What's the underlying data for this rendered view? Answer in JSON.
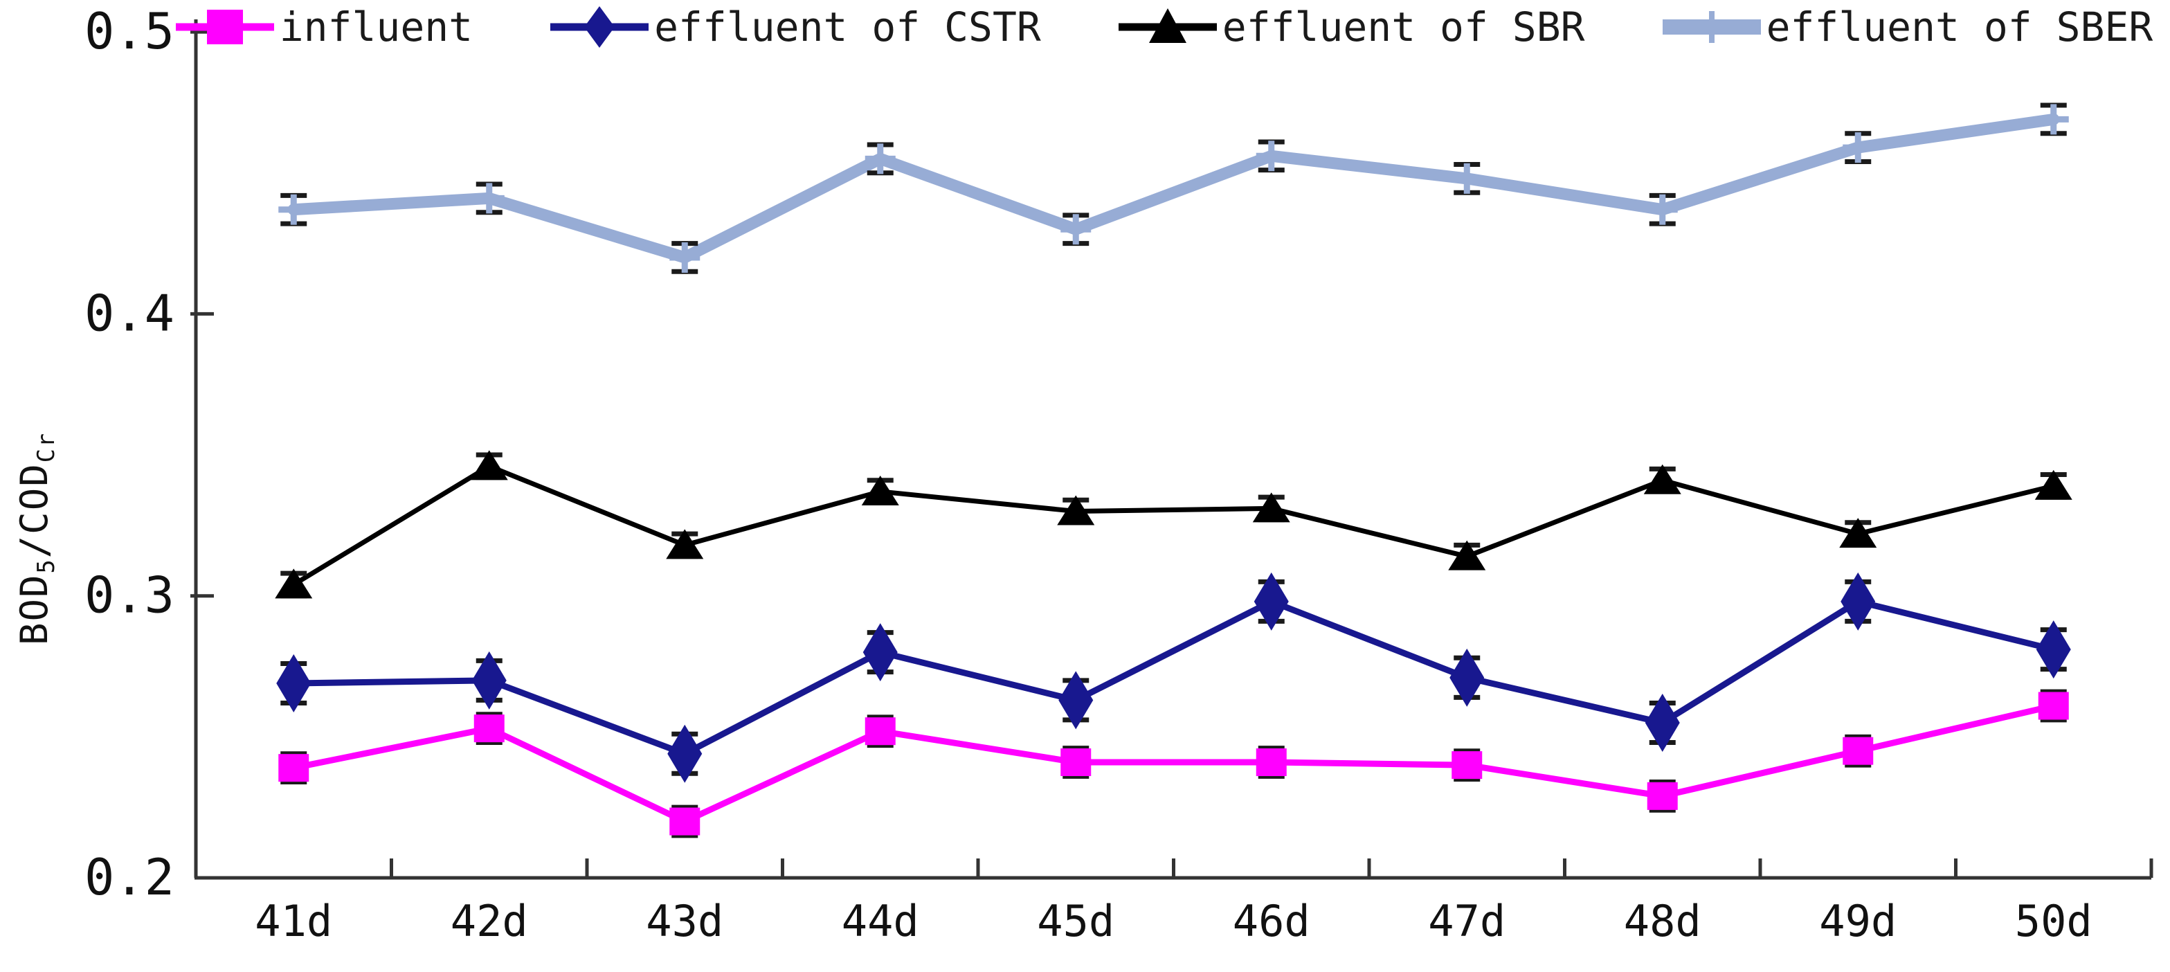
{
  "page": {
    "background": "#ffffff",
    "axis_color": "#333333",
    "error_bar_color": "#1a1a1a"
  },
  "y_axis": {
    "title_plain": "BOD5/CODCr",
    "title_parts": [
      {
        "t": "BOD",
        "sub": false
      },
      {
        "t": "5",
        "sub": true
      },
      {
        "t": "/COD",
        "sub": false
      },
      {
        "t": "Cr",
        "sub": true
      }
    ]
  },
  "chart_data": {
    "type": "line",
    "title": "",
    "xlabel": "",
    "ylabel": "BOD5/CODCr",
    "ylim": [
      0.2,
      0.5
    ],
    "yticks": [
      0.2,
      0.3,
      0.4,
      0.5
    ],
    "ytick_labels": [
      "0.2",
      "0.3",
      "0.4",
      "0.5"
    ],
    "grid": false,
    "legend_position": "top",
    "categories": [
      "41d",
      "42d",
      "43d",
      "44d",
      "45d",
      "46d",
      "47d",
      "48d",
      "49d",
      "50d"
    ],
    "series": [
      {
        "name": "influent",
        "color": "#ff00ff",
        "marker": "square",
        "line_width": 9,
        "error": 0.005,
        "values": [
          0.239,
          0.253,
          0.22,
          0.252,
          0.241,
          0.241,
          0.24,
          0.229,
          0.245,
          0.261
        ]
      },
      {
        "name": "effluent of CSTR",
        "color": "#18188f",
        "marker": "diamond",
        "line_width": 9,
        "error": 0.007,
        "values": [
          0.269,
          0.27,
          0.244,
          0.28,
          0.263,
          0.298,
          0.271,
          0.255,
          0.298,
          0.281
        ]
      },
      {
        "name": "effluent of SBR",
        "color": "#000000",
        "marker": "triangle",
        "line_width": 7,
        "error": 0.004,
        "values": [
          0.304,
          0.346,
          0.318,
          0.337,
          0.33,
          0.331,
          0.314,
          0.341,
          0.322,
          0.339
        ]
      },
      {
        "name": "effluent of SBER",
        "color": "#97acd5",
        "marker": "plus",
        "line_width": 17,
        "error": 0.005,
        "values": [
          0.437,
          0.441,
          0.42,
          0.455,
          0.43,
          0.456,
          0.448,
          0.437,
          0.459,
          0.469
        ]
      }
    ]
  }
}
